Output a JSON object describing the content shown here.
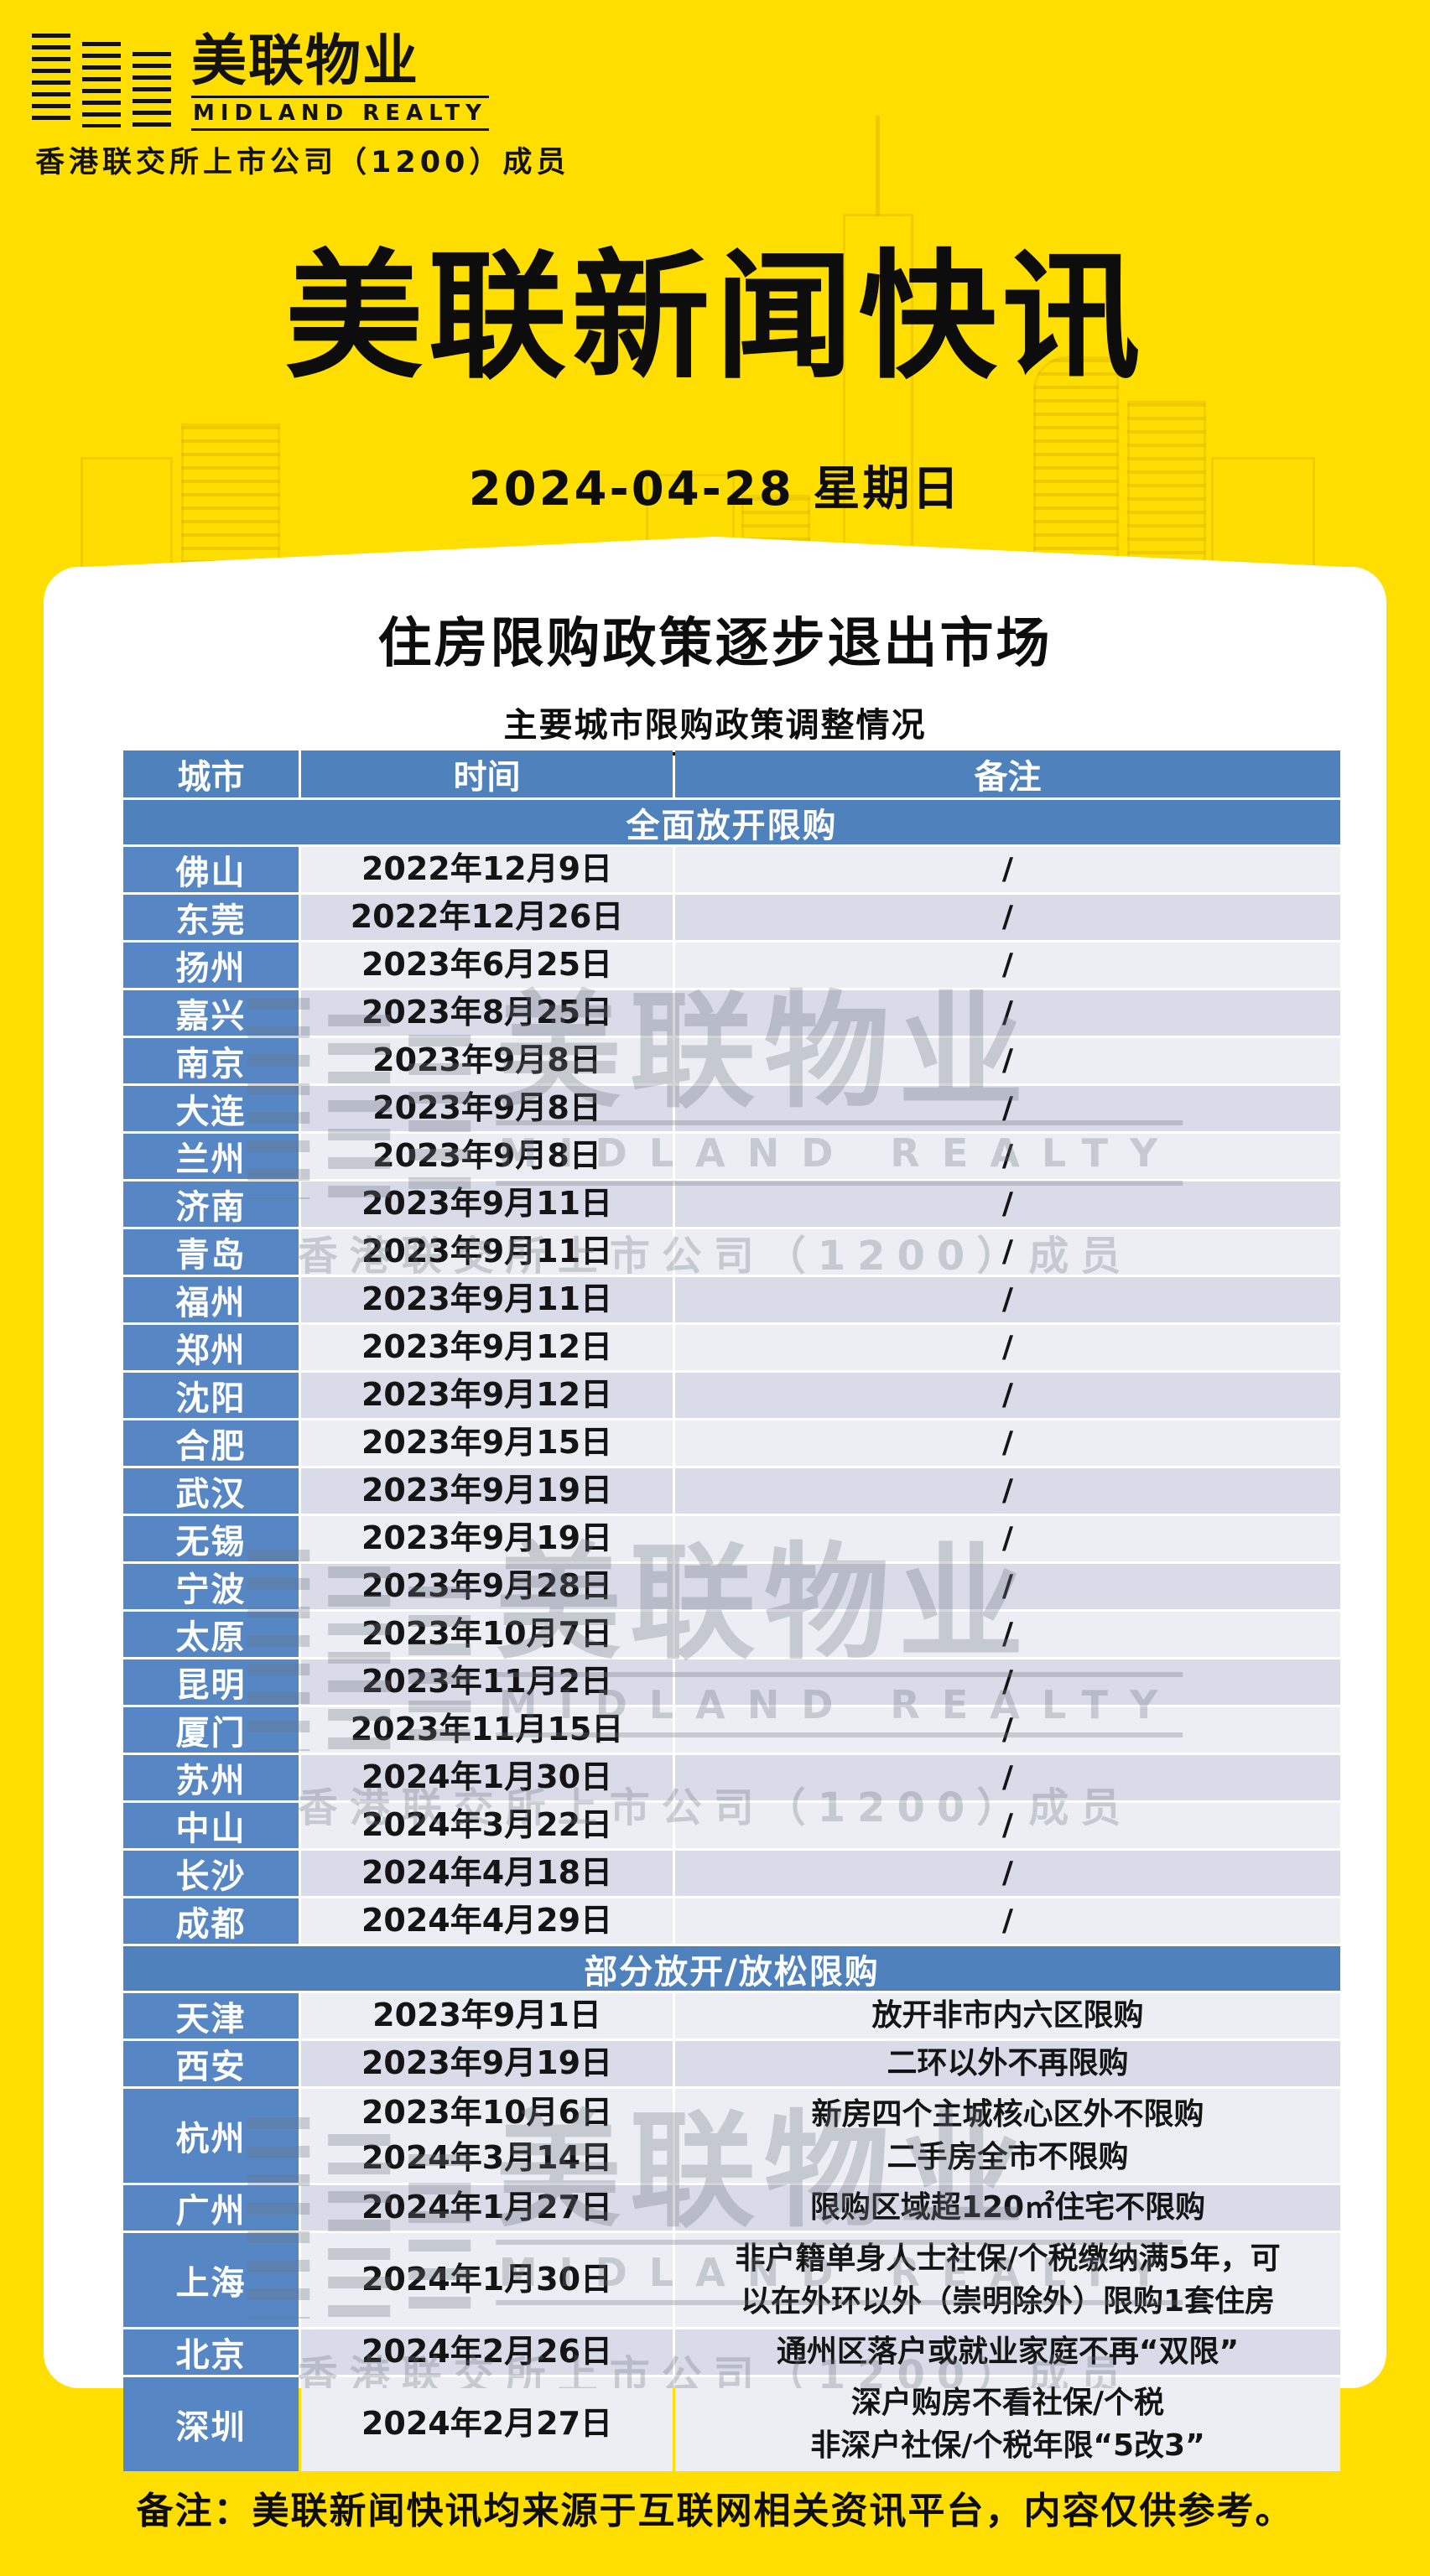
{
  "colors": {
    "yellow": "#FFDE00",
    "header_blue": "#4F81BD",
    "city_blue": "#5687C4",
    "row_light": "#ECEEF3",
    "row_dark": "#D9DCE8",
    "text": "#0d0d0d"
  },
  "brand": {
    "logo_cn": "美联物业",
    "logo_en": "MIDLAND REALTY",
    "member_line": "香港联交所上市公司（1200）成员"
  },
  "masthead": {
    "title": "美联新闻快讯",
    "date_line": "2024-04-28  星期日"
  },
  "card": {
    "title": "住房限购政策逐步退出市场",
    "subtitle": "主要城市限购政策调整情况"
  },
  "table": {
    "headers": {
      "city": "城市",
      "time": "时间",
      "remark": "备注"
    },
    "sections": [
      {
        "label": "全面放开限购",
        "rows": [
          {
            "city": "佛山",
            "time": "2022年12月9日",
            "remark": "/"
          },
          {
            "city": "东莞",
            "time": "2022年12月26日",
            "remark": "/"
          },
          {
            "city": "扬州",
            "time": "2023年6月25日",
            "remark": "/"
          },
          {
            "city": "嘉兴",
            "time": "2023年8月25日",
            "remark": "/"
          },
          {
            "city": "南京",
            "time": "2023年9月8日",
            "remark": "/"
          },
          {
            "city": "大连",
            "time": "2023年9月8日",
            "remark": "/"
          },
          {
            "city": "兰州",
            "time": "2023年9月8日",
            "remark": "/"
          },
          {
            "city": "济南",
            "time": "2023年9月11日",
            "remark": "/"
          },
          {
            "city": "青岛",
            "time": "2023年9月11日",
            "remark": "/"
          },
          {
            "city": "福州",
            "time": "2023年9月11日",
            "remark": "/"
          },
          {
            "city": "郑州",
            "time": "2023年9月12日",
            "remark": "/"
          },
          {
            "city": "沈阳",
            "time": "2023年9月12日",
            "remark": "/"
          },
          {
            "city": "合肥",
            "time": "2023年9月15日",
            "remark": "/"
          },
          {
            "city": "武汉",
            "time": "2023年9月19日",
            "remark": "/"
          },
          {
            "city": "无锡",
            "time": "2023年9月19日",
            "remark": "/"
          },
          {
            "city": "宁波",
            "time": "2023年9月28日",
            "remark": "/"
          },
          {
            "city": "太原",
            "time": "2023年10月7日",
            "remark": "/"
          },
          {
            "city": "昆明",
            "time": "2023年11月2日",
            "remark": "/"
          },
          {
            "city": "厦门",
            "time": "2023年11月15日",
            "remark": "/"
          },
          {
            "city": "苏州",
            "time": "2024年1月30日",
            "remark": "/"
          },
          {
            "city": "中山",
            "time": "2024年3月22日",
            "remark": "/"
          },
          {
            "city": "长沙",
            "time": "2024年4月18日",
            "remark": "/"
          },
          {
            "city": "成都",
            "time": "2024年4月29日",
            "remark": "/"
          }
        ]
      },
      {
        "label": "部分放开/放松限购",
        "rows": [
          {
            "city": "天津",
            "time": "2023年9月1日",
            "remark": "放开非市内六区限购"
          },
          {
            "city": "西安",
            "time": "2023年9月19日",
            "remark": "二环以外不再限购"
          },
          {
            "city": "杭州",
            "time": "2023年10月6日\n2024年3月14日",
            "remark": "新房四个主城核心区外不限购\n二手房全市不限购"
          },
          {
            "city": "广州",
            "time": "2024年1月27日",
            "remark": "限购区域超120㎡住宅不限购"
          },
          {
            "city": "上海",
            "time": "2024年1月30日",
            "remark": "非户籍单身人士社保/个税缴纳满5年，可\n以在外环以外（崇明除外）限购1套住房"
          },
          {
            "city": "北京",
            "time": "2024年2月26日",
            "remark": "通州区落户或就业家庭不再“双限”"
          },
          {
            "city": "深圳",
            "time": "2024年2月27日",
            "remark": "深户购房不看社保/个税\n非深户社保/个税年限“5改3”"
          }
        ]
      }
    ]
  },
  "watermark": {
    "logo_cn": "美联物业",
    "logo_en": "MIDLAND REALTY",
    "member_line": "香港联交所上市公司（1200）成员"
  },
  "footer": {
    "note": "备注：美联新闻快讯均来源于互联网相关资讯平台，内容仅供参考。"
  }
}
